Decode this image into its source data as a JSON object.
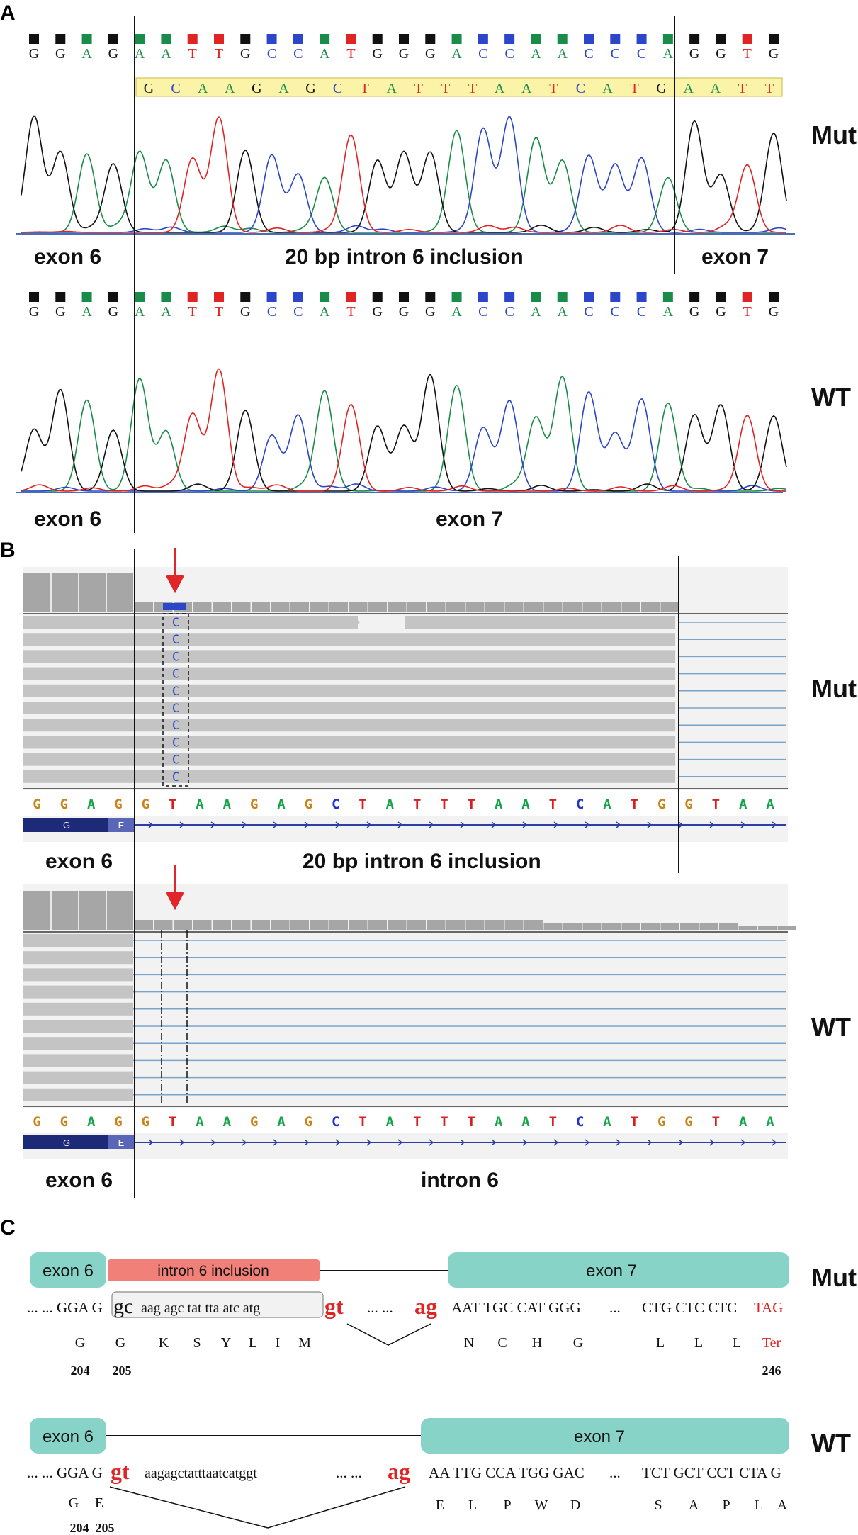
{
  "colors": {
    "A": "#1a8c4a",
    "C": "#2b46c8",
    "G": "#111111",
    "T": "#e02424",
    "igv_A": "#15a44a",
    "igv_C": "#2233cc",
    "igv_G": "#c8841a",
    "igv_T": "#d42020",
    "exon_fill": "#88d3c8",
    "intron_fill": "#f08078",
    "highlight": "#fbf3a8",
    "splice": "#e02424",
    "arrow": "#e0262a",
    "gene_dark": "#1c2a78"
  },
  "panelA": {
    "label": "A",
    "mut": {
      "tag": "Mut",
      "bases": "GGAGAATTGCCATGGGACCAACCCAGGTG",
      "highlight_seq": "GCAAGAGCTATTTAATCATGAATT",
      "regions": [
        "exon 6",
        "20 bp intron 6 inclusion",
        "exon 7"
      ]
    },
    "wt": {
      "tag": "WT",
      "bases": "GGAGAATTGCCATGGGACCAACCCAGGTG",
      "regions": [
        "exon 6",
        "exon 7"
      ]
    }
  },
  "panelB": {
    "label": "B",
    "mut": {
      "tag": "Mut",
      "read_base": "C",
      "ref": "GGAGGTAAGAGCTATTTAATCATGGTAA",
      "gene_labels": [
        "G",
        "E"
      ],
      "regions": [
        "exon 6",
        "20 bp intron 6 inclusion"
      ]
    },
    "wt": {
      "tag": "WT",
      "ref": "GGAGGTAAGAGCTATTTAATCATGGTAA",
      "gene_labels": [
        "G",
        "E"
      ],
      "regions": [
        "exon 6",
        "intron 6"
      ]
    }
  },
  "panelC": {
    "label": "C",
    "mut": {
      "tag": "Mut",
      "boxes": {
        "exon6": "exon 6",
        "intron": "intron 6 inclusion",
        "exon7": "exon 7"
      },
      "seq": {
        "lead": "... ... GGA G",
        "boxed_big": "gc",
        "boxed_small": "aag agc tat tta atc atg",
        "donor": "gt",
        "dots": "... ...",
        "acceptor": "ag",
        "exon7_start": "AAT TGC CAT GGG",
        "mid_dots": "...",
        "exon7_end": "CTG CTC CTC",
        "stop": "TAG"
      },
      "aa_left": [
        "G",
        "G",
        "K",
        "S",
        "Y",
        "L",
        "I",
        "M"
      ],
      "aa_right": [
        "N",
        "C",
        "H",
        "G"
      ],
      "aa_end": [
        "L",
        "L",
        "L"
      ],
      "aa_stop": "Ter",
      "numbers": [
        "204",
        "205",
        "246"
      ]
    },
    "wt": {
      "tag": "WT",
      "boxes": {
        "exon6": "exon 6",
        "exon7": "exon 7"
      },
      "seq": {
        "lead": "... ... GGA G",
        "donor": "gt",
        "intron": "aagagctatttaatcatggt",
        "dots": "... ...",
        "acceptor": "ag",
        "exon7_start": "AA TTG CCA TGG GAC",
        "mid_dots": "...",
        "exon7_end": "TCT GCT CCT CTA G"
      },
      "aa_left": [
        "G",
        "E"
      ],
      "aa_right": [
        "E",
        "L",
        "P",
        "W",
        "D"
      ],
      "aa_end": [
        "S",
        "A",
        "P",
        "L",
        "A"
      ],
      "numbers": [
        "204",
        "205"
      ]
    }
  }
}
